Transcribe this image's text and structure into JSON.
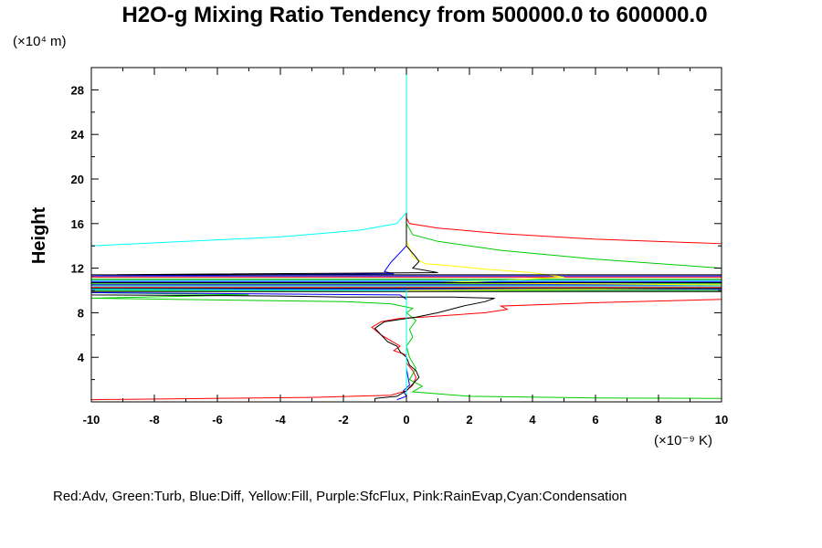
{
  "chart_data": {
    "type": "line",
    "title": "H2O-g Mixing Ratio Tendency from 500000.0 to 600000.0",
    "ylabel": "Height",
    "xlabel": "",
    "y_unit": "(×10⁴ m)",
    "x_unit": "(×10⁻⁹ K)",
    "legend_text": "Red:Adv, Green:Turb, Blue:Diff, Yellow:Fill, Purple:SfcFlux, Pink:RainEvap,Cyan:Condensation",
    "legend_position": "bottom",
    "xlim": [
      -10,
      10
    ],
    "ylim": [
      0,
      30
    ],
    "x_ticks": [
      -10,
      -8,
      -6,
      -4,
      -2,
      0,
      2,
      4,
      6,
      8,
      10
    ],
    "y_ticks": [
      4,
      8,
      12,
      16,
      20,
      24,
      28
    ],
    "grid": false,
    "series": [
      {
        "color": "#ff0000",
        "points": [
          [
            0,
            29.5
          ],
          [
            0,
            16.5
          ],
          [
            0.1,
            16
          ],
          [
            1,
            15.6
          ],
          [
            3,
            15.1
          ],
          [
            6,
            14.6
          ],
          [
            10,
            14.2
          ],
          [
            10,
            11.2
          ],
          [
            -10,
            11.2
          ],
          [
            -10,
            11
          ],
          [
            10,
            11
          ],
          [
            10,
            10.5
          ],
          [
            -10,
            10.5
          ],
          [
            -10,
            10.3
          ],
          [
            10,
            10.3
          ],
          [
            10,
            9.2
          ],
          [
            6,
            8.9
          ],
          [
            3,
            8.6
          ],
          [
            3.2,
            8.3
          ],
          [
            2.5,
            8
          ],
          [
            0.5,
            7.6
          ],
          [
            -0.2,
            7.5
          ],
          [
            -0.8,
            7.2
          ],
          [
            -1.1,
            6.7
          ],
          [
            -0.8,
            6
          ],
          [
            -0.5,
            5.5
          ],
          [
            -0.2,
            5
          ],
          [
            -0.4,
            4.6
          ],
          [
            0,
            4.2
          ],
          [
            0,
            3.5
          ],
          [
            0.2,
            2.8
          ],
          [
            0.3,
            2.2
          ],
          [
            0.2,
            1.5
          ],
          [
            0,
            1
          ],
          [
            -0.5,
            0.6
          ],
          [
            -3,
            0.4
          ],
          [
            -10,
            0.2
          ]
        ]
      },
      {
        "color": "#00cc00",
        "points": [
          [
            0,
            29.5
          ],
          [
            0,
            16
          ],
          [
            0.2,
            15
          ],
          [
            1,
            14.4
          ],
          [
            3,
            13.6
          ],
          [
            6,
            12.8
          ],
          [
            10,
            12
          ],
          [
            10,
            11
          ],
          [
            -10,
            11
          ],
          [
            -10,
            10.6
          ],
          [
            10,
            10.6
          ],
          [
            10,
            10
          ],
          [
            -10,
            10
          ],
          [
            -10,
            9.8
          ],
          [
            -5,
            9.6
          ],
          [
            -10,
            9.3
          ],
          [
            -2,
            9
          ],
          [
            -0.5,
            8.8
          ],
          [
            0.2,
            8.4
          ],
          [
            0,
            8
          ],
          [
            0.3,
            7.3
          ],
          [
            0.1,
            6.5
          ],
          [
            0.2,
            5.8
          ],
          [
            0,
            5
          ],
          [
            0.1,
            4
          ],
          [
            0.3,
            3
          ],
          [
            0.1,
            2
          ],
          [
            0.5,
            1.4
          ],
          [
            0.2,
            0.9
          ],
          [
            2,
            0.5
          ],
          [
            6,
            0.35
          ],
          [
            10,
            0.3
          ]
        ]
      },
      {
        "color": "#0000ff",
        "points": [
          [
            0,
            29.5
          ],
          [
            0,
            14
          ],
          [
            -0.5,
            12.5
          ],
          [
            -0.7,
            11.7
          ],
          [
            -0.4,
            11.5
          ],
          [
            -10,
            11.3
          ],
          [
            10,
            11.3
          ],
          [
            10,
            10.8
          ],
          [
            -10,
            10.8
          ],
          [
            -10,
            10.5
          ],
          [
            10,
            10.5
          ],
          [
            10,
            10.1
          ],
          [
            -10,
            10.1
          ],
          [
            -10,
            9.8
          ],
          [
            -0.2,
            9.6
          ],
          [
            0,
            9.2
          ],
          [
            0,
            6
          ],
          [
            0,
            3
          ],
          [
            0.1,
            1.5
          ],
          [
            -0.1,
            1
          ],
          [
            0,
            0.5
          ],
          [
            -0.3,
            0.2
          ]
        ]
      },
      {
        "color": "#ffff00",
        "points": [
          [
            0,
            29.5
          ],
          [
            0,
            14.5
          ],
          [
            0.2,
            13
          ],
          [
            0.6,
            12.4
          ],
          [
            1.5,
            12.2
          ],
          [
            2.5,
            11.9
          ],
          [
            4,
            11.6
          ],
          [
            5,
            11.2
          ],
          [
            3,
            10.9
          ],
          [
            1,
            10.7
          ],
          [
            10,
            10.5
          ],
          [
            10,
            10.2
          ],
          [
            0,
            10
          ],
          [
            0,
            0
          ]
        ]
      },
      {
        "color": "#000000",
        "points": [
          [
            0,
            29.5
          ],
          [
            0,
            14
          ],
          [
            0.3,
            13
          ],
          [
            0.4,
            12.6
          ],
          [
            0.2,
            12
          ],
          [
            1,
            11.6
          ],
          [
            -10,
            11.4
          ],
          [
            10,
            11.4
          ],
          [
            10,
            10.7
          ],
          [
            -10,
            10.7
          ],
          [
            -10,
            10.2
          ],
          [
            10,
            10.2
          ],
          [
            10,
            9.9
          ],
          [
            -10,
            9.9
          ],
          [
            -10,
            9.6
          ],
          [
            -4,
            9.5
          ],
          [
            -2,
            9.4
          ],
          [
            1.5,
            9.4
          ],
          [
            2.8,
            9.3
          ],
          [
            2.5,
            9
          ],
          [
            1.8,
            8.6
          ],
          [
            1,
            8
          ],
          [
            0.3,
            7.6
          ],
          [
            -0.2,
            7.4
          ],
          [
            -0.7,
            7.2
          ],
          [
            -1,
            6.6
          ],
          [
            -0.8,
            6
          ],
          [
            -0.6,
            5.4
          ],
          [
            -0.3,
            5
          ],
          [
            -0.2,
            4.5
          ],
          [
            0,
            4
          ],
          [
            0.1,
            3.3
          ],
          [
            0.3,
            2.8
          ],
          [
            0.4,
            2.2
          ],
          [
            0.2,
            1.6
          ],
          [
            0,
            1
          ],
          [
            -0.3,
            0.5
          ],
          [
            -1,
            0.3
          ]
        ]
      },
      {
        "color": "#00ffff",
        "points": [
          [
            0,
            29.8
          ],
          [
            0,
            17
          ],
          [
            -0.3,
            16
          ],
          [
            -1.5,
            15.4
          ],
          [
            -4,
            14.8
          ],
          [
            -7,
            14.4
          ],
          [
            -10,
            14
          ],
          [
            -10,
            10.9
          ],
          [
            10,
            10.9
          ],
          [
            10,
            10.4
          ],
          [
            -10,
            10.4
          ],
          [
            -10,
            10.1
          ],
          [
            0,
            10
          ],
          [
            0,
            0
          ]
        ]
      }
    ]
  }
}
